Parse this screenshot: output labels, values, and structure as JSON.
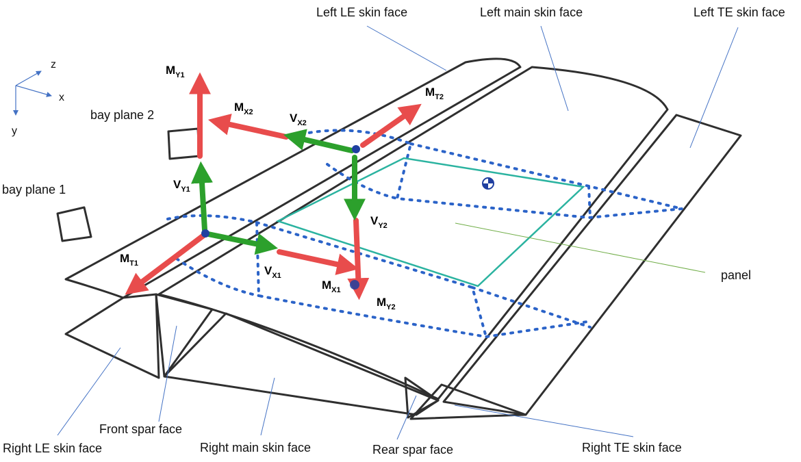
{
  "colors": {
    "sketch": "#2f2f2f",
    "leader": "#4472c4",
    "moment": "#e84c4c",
    "shear": "#2ca02c",
    "bay": "#2b63c8",
    "panel": "#2bb3a0",
    "panel_leader": "#70ad47"
  },
  "axes": {
    "z": "z",
    "x": "x",
    "y": "y"
  },
  "labels": {
    "left_le": "Left LE skin face",
    "left_main": "Left main skin face",
    "left_te": "Left TE skin face",
    "bay_plane_2": "bay plane 2",
    "bay_plane_1": "bay plane 1",
    "panel": "panel",
    "right_le": "Right LE skin face",
    "front_spar": "Front spar face",
    "right_main": "Right main skin face",
    "rear_spar": "Rear spar face",
    "right_te": "Right TE skin face"
  },
  "vectors": {
    "my1": {
      "base": "M",
      "sub": "Y1"
    },
    "mx2": {
      "base": "M",
      "sub": "X2"
    },
    "vx2": {
      "base": "V",
      "sub": "X2"
    },
    "mt2": {
      "base": "M",
      "sub": "T2"
    },
    "vy1": {
      "base": "V",
      "sub": "Y1"
    },
    "vy2": {
      "base": "V",
      "sub": "Y2"
    },
    "mt1": {
      "base": "M",
      "sub": "T1"
    },
    "vx1": {
      "base": "V",
      "sub": "X1"
    },
    "mx1": {
      "base": "M",
      "sub": "X1"
    },
    "my2": {
      "base": "M",
      "sub": "Y2"
    }
  }
}
